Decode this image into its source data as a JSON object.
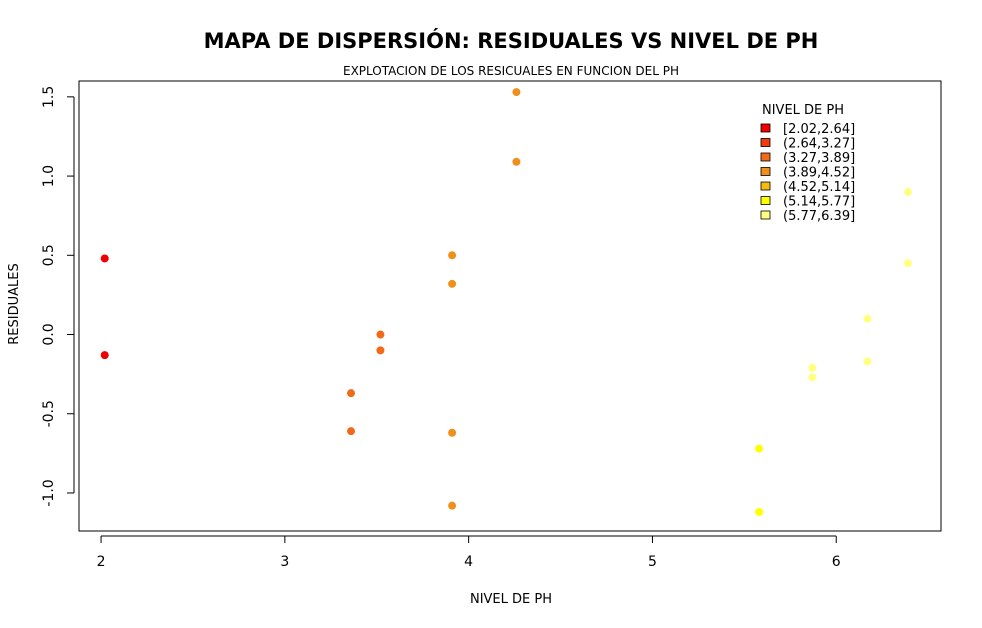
{
  "chart_data": {
    "type": "scatter",
    "title": "MAPA DE DISPERSIÓN: RESIDUALES VS NIVEL DE PH",
    "subtitle": "EXPLOTACION DE LOS RESICUALES EN FUNCION DEL PH",
    "xlabel": "NIVEL DE PH",
    "ylabel": "RESIDUALES",
    "xlim": [
      1.88,
      6.57
    ],
    "ylim": [
      -1.24,
      1.6
    ],
    "xticks": [
      2,
      3,
      4,
      5,
      6
    ],
    "xtick_labels": [
      "2",
      "3",
      "4",
      "5",
      "6"
    ],
    "yticks": [
      -1.0,
      -0.5,
      0.0,
      0.5,
      1.0,
      1.5
    ],
    "ytick_labels": [
      "-1.0",
      "-0.5",
      "0.0",
      "0.5",
      "1.0",
      "1.5"
    ],
    "grid": false,
    "legend": {
      "title": "NIVEL DE PH",
      "placement": "top-right",
      "entries": [
        {
          "label": "[2.02,2.64]",
          "color": "#ee0000"
        },
        {
          "label": "(2.64,3.27]",
          "color": "#f03a10"
        },
        {
          "label": "(3.27,3.89]",
          "color": "#f06a1a"
        },
        {
          "label": "(3.89,4.52]",
          "color": "#f0901c"
        },
        {
          "label": "(4.52,5.14]",
          "color": "#f5bb10"
        },
        {
          "label": "(5.14,5.77]",
          "color": "#ffff00"
        },
        {
          "label": "(5.77,6.39]",
          "color": "#ffff80"
        }
      ]
    },
    "points": [
      {
        "x": 2.02,
        "y": 0.48,
        "color": "#ee0000"
      },
      {
        "x": 2.02,
        "y": -0.13,
        "color": "#ee0000"
      },
      {
        "x": 3.36,
        "y": -0.37,
        "color": "#f06a1a"
      },
      {
        "x": 3.36,
        "y": -0.61,
        "color": "#f06a1a"
      },
      {
        "x": 3.52,
        "y": 0.0,
        "color": "#f06a1a"
      },
      {
        "x": 3.52,
        "y": -0.1,
        "color": "#f06a1a"
      },
      {
        "x": 3.91,
        "y": 0.5,
        "color": "#f0901c"
      },
      {
        "x": 3.91,
        "y": 0.32,
        "color": "#f0901c"
      },
      {
        "x": 3.91,
        "y": -0.62,
        "color": "#f0901c"
      },
      {
        "x": 3.91,
        "y": -1.08,
        "color": "#f0901c"
      },
      {
        "x": 4.26,
        "y": 1.53,
        "color": "#f0901c"
      },
      {
        "x": 4.26,
        "y": 1.09,
        "color": "#f0901c"
      },
      {
        "x": 5.58,
        "y": -0.72,
        "color": "#ffff00"
      },
      {
        "x": 5.58,
        "y": -1.12,
        "color": "#ffff00"
      },
      {
        "x": 5.87,
        "y": -0.21,
        "color": "#ffff80"
      },
      {
        "x": 5.87,
        "y": -0.27,
        "color": "#ffff80"
      },
      {
        "x": 6.17,
        "y": 0.1,
        "color": "#ffff80"
      },
      {
        "x": 6.17,
        "y": -0.17,
        "color": "#ffff80"
      },
      {
        "x": 6.39,
        "y": 0.9,
        "color": "#ffff80"
      },
      {
        "x": 6.39,
        "y": 0.45,
        "color": "#ffff80"
      }
    ]
  }
}
